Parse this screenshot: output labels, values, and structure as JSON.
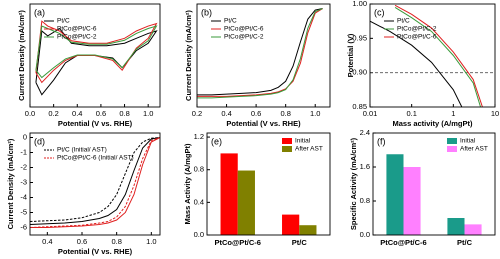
{
  "chart_data": [
    {
      "type": "line",
      "panel_label": "(a)",
      "x_label": "Potential (V vs. RHE)",
      "y_label": "Current Density (mA/cm²)",
      "xlim": [
        0,
        1.1
      ],
      "ylim": [
        -1.1,
        1.0
      ],
      "xticks": [
        {
          "value": 0,
          "label": "0.0"
        },
        0.2,
        0.4,
        0.6,
        0.8,
        {
          "value": 1,
          "label": "1.0"
        }
      ],
      "legend_corner": "top-left",
      "series": [
        {
          "name": "Pt/C",
          "color": "#000000",
          "x": [
            0.05,
            0.1,
            0.15,
            0.25,
            0.35,
            0.5,
            0.65,
            0.8,
            0.9,
            1.0,
            1.07,
            1.0,
            0.9,
            0.78,
            0.7,
            0.55,
            0.4,
            0.3,
            0.2,
            0.1,
            0.05
          ],
          "values": [
            -0.6,
            0.45,
            0.35,
            0.5,
            0.2,
            0.15,
            0.15,
            0.2,
            0.3,
            0.4,
            0.45,
            0.2,
            0.05,
            -0.3,
            -0.1,
            -0.05,
            -0.05,
            -0.2,
            -0.55,
            -0.85,
            -0.6
          ]
        },
        {
          "name": "PtCo@Pt/C-6",
          "color": "#e02020",
          "x": [
            0.05,
            0.1,
            0.15,
            0.25,
            0.35,
            0.5,
            0.65,
            0.8,
            0.9,
            1.0,
            1.07,
            1.0,
            0.9,
            0.78,
            0.7,
            0.55,
            0.4,
            0.3,
            0.2,
            0.1,
            0.05
          ],
          "values": [
            -0.4,
            0.65,
            0.55,
            0.45,
            0.25,
            0.2,
            0.2,
            0.3,
            0.45,
            0.55,
            0.6,
            0.3,
            0.1,
            -0.35,
            -0.15,
            -0.05,
            -0.05,
            -0.15,
            -0.35,
            -0.6,
            -0.4
          ]
        },
        {
          "name": "PtCo@Pt/C-2",
          "color": "#3a9a3a",
          "x": [
            0.05,
            0.1,
            0.15,
            0.25,
            0.35,
            0.5,
            0.65,
            0.8,
            0.9,
            1.0,
            1.07,
            1.0,
            0.9,
            0.78,
            0.7,
            0.55,
            0.4,
            0.3,
            0.2,
            0.1,
            0.05
          ],
          "values": [
            -0.35,
            0.55,
            0.5,
            0.4,
            0.22,
            0.18,
            0.18,
            0.26,
            0.4,
            0.5,
            0.55,
            0.25,
            0.08,
            -0.3,
            -0.12,
            -0.04,
            -0.04,
            -0.12,
            -0.3,
            -0.5,
            -0.35
          ]
        }
      ]
    },
    {
      "type": "line",
      "panel_label": "(b)",
      "x_label": "Potential (V vs. RHE)",
      "y_label": "Current Density (mA/cm²)",
      "xlim": [
        0.2,
        1.1
      ],
      "ylim": [
        -6.5,
        0.3
      ],
      "xticks": [
        0.2,
        0.4,
        0.6,
        0.8,
        {
          "value": 1,
          "label": "1.0"
        }
      ],
      "legend_corner": "top-left",
      "series": [
        {
          "name": "Pt/C",
          "color": "#000000",
          "x": [
            0.2,
            0.3,
            0.4,
            0.5,
            0.6,
            0.7,
            0.75,
            0.8,
            0.85,
            0.9,
            0.95,
            1.0,
            1.05
          ],
          "values": [
            -5.7,
            -5.7,
            -5.65,
            -5.6,
            -5.55,
            -5.4,
            -5.2,
            -4.8,
            -3.8,
            -2.2,
            -0.7,
            -0.1,
            0
          ]
        },
        {
          "name": "PtCo@Pt/C-6",
          "color": "#e02020",
          "x": [
            0.2,
            0.3,
            0.4,
            0.5,
            0.6,
            0.7,
            0.75,
            0.8,
            0.85,
            0.9,
            0.95,
            1.0,
            1.05
          ],
          "values": [
            -5.8,
            -5.8,
            -5.8,
            -5.75,
            -5.7,
            -5.6,
            -5.5,
            -5.3,
            -4.8,
            -3.6,
            -1.6,
            -0.3,
            0
          ]
        },
        {
          "name": "PtCo@Pt/C-2",
          "color": "#3a9a3a",
          "x": [
            0.2,
            0.3,
            0.4,
            0.5,
            0.6,
            0.7,
            0.75,
            0.8,
            0.85,
            0.9,
            0.95,
            1.0,
            1.05
          ],
          "values": [
            -5.9,
            -5.9,
            -5.85,
            -5.8,
            -5.75,
            -5.65,
            -5.55,
            -5.35,
            -4.7,
            -3.3,
            -1.3,
            -0.2,
            0
          ]
        }
      ]
    },
    {
      "type": "line",
      "panel_label": "(c)",
      "x_label": "Mass activity (A/mgPt)",
      "y_label": "Potential (V)",
      "x_log": true,
      "xlim": [
        0.01,
        10
      ],
      "ylim": [
        0.85,
        1.0
      ],
      "xticks": [
        0.01,
        0.1,
        1,
        10
      ],
      "yticks": [
        0.85,
        {
          "value": 0.9,
          "label": "0.90"
        },
        0.95,
        {
          "value": 1,
          "label": "1.00"
        }
      ],
      "hline": 0.9,
      "legend_corner": "top-left",
      "series": [
        {
          "name": "Pt/C",
          "color": "#000000",
          "x": [
            0.01,
            0.03,
            0.1,
            0.3,
            1,
            1.6
          ],
          "values": [
            0.975,
            0.96,
            0.94,
            0.915,
            0.875,
            0.85
          ]
        },
        {
          "name": "PtCo@Pt/C-2",
          "color": "#3a9a3a",
          "x": [
            0.04,
            0.1,
            0.3,
            1,
            3,
            4.5
          ],
          "values": [
            0.995,
            0.98,
            0.96,
            0.925,
            0.885,
            0.85
          ]
        },
        {
          "name": "PtCo@Pt/C-6",
          "color": "#e02020",
          "x": [
            0.04,
            0.1,
            0.3,
            1,
            3,
            5
          ],
          "values": [
            0.998,
            0.985,
            0.965,
            0.93,
            0.89,
            0.85
          ]
        }
      ]
    },
    {
      "type": "line",
      "panel_label": "(d)",
      "x_label": "Potential (V vs. RHE)",
      "y_label": "Current Density (mA/cm²)",
      "xlim": [
        0.3,
        1.05
      ],
      "ylim": [
        -6.5,
        0.3
      ],
      "xticks": [
        0.4,
        0.6,
        0.8,
        {
          "value": 1,
          "label": "1.0"
        }
      ],
      "yticks": [
        -6,
        -5,
        -4,
        -3,
        -2,
        -1,
        0
      ],
      "legend_corner": "top-left",
      "legend": [
        {
          "name": "Pt/C (Initial/ AST)",
          "color": "#000000"
        },
        {
          "name": "PtCo@Pt/C-6 (Initial/ AST)",
          "color": "#e02020"
        }
      ],
      "series": [
        {
          "color": "#000000",
          "x": [
            0.3,
            0.4,
            0.5,
            0.6,
            0.7,
            0.75,
            0.8,
            0.85,
            0.9,
            0.95,
            1.0,
            1.05
          ],
          "values": [
            -5.8,
            -5.75,
            -5.7,
            -5.6,
            -5.4,
            -5.2,
            -4.8,
            -3.8,
            -2.2,
            -0.7,
            -0.1,
            0
          ]
        },
        {
          "color": "#000000",
          "dash": true,
          "x": [
            0.3,
            0.4,
            0.5,
            0.6,
            0.7,
            0.75,
            0.8,
            0.85,
            0.9,
            0.95,
            1.0,
            1.05
          ],
          "values": [
            -5.6,
            -5.55,
            -5.5,
            -5.35,
            -5,
            -4.6,
            -3.8,
            -2.4,
            -1,
            -0.3,
            -0.05,
            0
          ]
        },
        {
          "color": "#e02020",
          "x": [
            0.3,
            0.4,
            0.5,
            0.6,
            0.7,
            0.75,
            0.8,
            0.85,
            0.9,
            0.95,
            1.0,
            1.05
          ],
          "values": [
            -6.0,
            -6.0,
            -5.95,
            -5.9,
            -5.8,
            -5.7,
            -5.5,
            -5.0,
            -3.8,
            -1.8,
            -0.3,
            0
          ]
        },
        {
          "color": "#e02020",
          "dash": true,
          "x": [
            0.3,
            0.4,
            0.5,
            0.6,
            0.7,
            0.75,
            0.8,
            0.85,
            0.9,
            0.95,
            1.0,
            1.05
          ],
          "values": [
            -6.0,
            -5.95,
            -5.9,
            -5.85,
            -5.7,
            -5.6,
            -5.3,
            -4.6,
            -3.2,
            -1.4,
            -0.2,
            0
          ]
        }
      ]
    },
    {
      "type": "bar",
      "panel_label": "(e)",
      "y_label": "Mass Activity (A/mgPt)",
      "categories": [
        "PtCo@Pt/C-6",
        "Pt/C"
      ],
      "ylim": [
        0,
        1.25
      ],
      "yticks": [
        {
          "value": 0,
          "label": "0.0"
        },
        0.4,
        0.8,
        1.2
      ],
      "legend_corner": "top-right",
      "series": [
        {
          "name": "Initial",
          "color": "#ff0000",
          "values": [
            1.0,
            0.25
          ]
        },
        {
          "name": "After AST",
          "color": "#808000",
          "values": [
            0.79,
            0.12
          ]
        }
      ]
    },
    {
      "type": "bar",
      "panel_label": "(f)",
      "y_label": "Specific Activity (mA/cm²)",
      "categories": [
        "PtCo@Pt/C-6",
        "Pt/C"
      ],
      "ylim": [
        0,
        2.4
      ],
      "yticks": [
        {
          "value": 0,
          "label": "0.0"
        },
        0.8,
        1.6,
        2.4
      ],
      "legend_corner": "top-right",
      "series": [
        {
          "name": "Initial",
          "color": "#1a9b8a",
          "values": [
            1.9,
            0.4
          ]
        },
        {
          "name": "After AST",
          "color": "#ff80ff",
          "values": [
            1.6,
            0.25
          ]
        }
      ]
    }
  ]
}
